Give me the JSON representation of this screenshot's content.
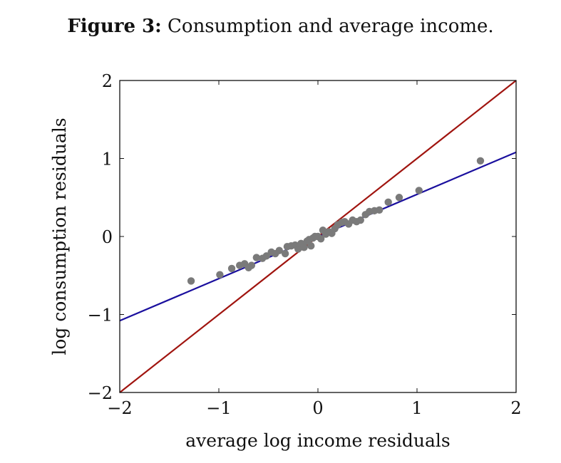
{
  "figure": {
    "label": "Figure 3:",
    "caption": "Consumption and average income."
  },
  "chart_data": {
    "type": "scatter",
    "xlabel": "average log income residuals",
    "ylabel": "log consumption residuals",
    "xlim": [
      -2,
      2
    ],
    "ylim": [
      -2,
      2
    ],
    "xticks": [
      -2,
      -1,
      0,
      1,
      2
    ],
    "yticks": [
      -2,
      -1,
      0,
      1,
      2
    ],
    "x_tick_labels": [
      "−2",
      "−1",
      "0",
      "1",
      "2"
    ],
    "y_tick_labels": [
      "−2",
      "−1",
      "0",
      "1",
      "2"
    ],
    "grid": false,
    "colors": {
      "points": "#7a7a7a",
      "fit_line": "#1a0f9e",
      "reference_line": "#a0140f",
      "axes": "#111111"
    },
    "series": [
      {
        "type": "scatter",
        "points": [
          [
            -1.28,
            -0.57
          ],
          [
            -0.99,
            -0.49
          ],
          [
            -0.87,
            -0.41
          ],
          [
            -0.79,
            -0.37
          ],
          [
            -0.74,
            -0.35
          ],
          [
            -0.7,
            -0.4
          ],
          [
            -0.67,
            -0.37
          ],
          [
            -0.62,
            -0.27
          ],
          [
            -0.56,
            -0.28
          ],
          [
            -0.52,
            -0.25
          ],
          [
            -0.47,
            -0.2
          ],
          [
            -0.43,
            -0.22
          ],
          [
            -0.39,
            -0.18
          ],
          [
            -0.33,
            -0.22
          ],
          [
            -0.31,
            -0.13
          ],
          [
            -0.27,
            -0.12
          ],
          [
            -0.23,
            -0.11
          ],
          [
            -0.2,
            -0.16
          ],
          [
            -0.17,
            -0.09
          ],
          [
            -0.14,
            -0.14
          ],
          [
            -0.11,
            -0.06
          ],
          [
            -0.09,
            -0.04
          ],
          [
            -0.07,
            -0.12
          ],
          [
            -0.05,
            -0.02
          ],
          [
            -0.03,
            0.0
          ],
          [
            0.0,
            0.0
          ],
          [
            0.03,
            -0.03
          ],
          [
            0.05,
            0.08
          ],
          [
            0.08,
            0.03
          ],
          [
            0.11,
            0.06
          ],
          [
            0.14,
            0.04
          ],
          [
            0.17,
            0.1
          ],
          [
            0.2,
            0.15
          ],
          [
            0.24,
            0.18
          ],
          [
            0.27,
            0.19
          ],
          [
            0.31,
            0.16
          ],
          [
            0.35,
            0.21
          ],
          [
            0.39,
            0.19
          ],
          [
            0.43,
            0.21
          ],
          [
            0.48,
            0.28
          ],
          [
            0.52,
            0.32
          ],
          [
            0.57,
            0.33
          ],
          [
            0.62,
            0.34
          ],
          [
            0.71,
            0.44
          ],
          [
            0.82,
            0.5
          ],
          [
            1.02,
            0.59
          ],
          [
            1.64,
            0.97
          ]
        ]
      },
      {
        "type": "line",
        "points": [
          [
            -2,
            -1.08
          ],
          [
            2,
            1.08
          ]
        ]
      },
      {
        "type": "line",
        "points": [
          [
            -2,
            -2
          ],
          [
            2,
            2
          ]
        ]
      }
    ]
  }
}
